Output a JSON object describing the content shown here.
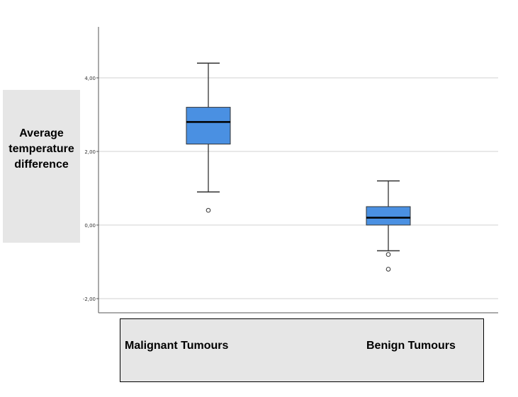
{
  "chart_data": {
    "type": "boxplot",
    "ylabel": "Average\ntemperature\ndifference",
    "xlabel": "",
    "title": "",
    "ylim": [
      -2.4,
      5.4
    ],
    "yticks": [
      -2,
      0,
      2,
      4
    ],
    "ytick_labels": [
      "-2,00",
      "0,00",
      "2,00",
      "4,00"
    ],
    "grid": true,
    "categories": [
      "Malignant Tumours",
      "Benign Tumours"
    ],
    "boxes": [
      {
        "category": "Malignant Tumours",
        "whisker_low": 0.9,
        "q1": 2.2,
        "median": 2.8,
        "q3": 3.2,
        "whisker_high": 4.4,
        "outliers": [
          0.4
        ]
      },
      {
        "category": "Benign Tumours",
        "whisker_low": -0.7,
        "q1": 0.0,
        "median": 0.2,
        "q3": 0.5,
        "whisker_high": 1.2,
        "outliers": [
          -0.8,
          -1.2
        ]
      }
    ],
    "colors": {
      "box_fill": "#4a90e2",
      "box_stroke": "#333333",
      "gridline": "#d0d0d0",
      "axis": "#555555",
      "label_background": "#e6e6e6"
    }
  }
}
